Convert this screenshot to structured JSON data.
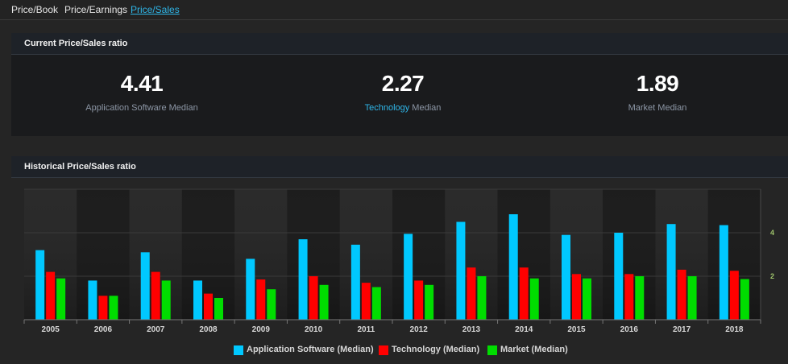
{
  "tabs": [
    {
      "label": "Price/Book",
      "active": false
    },
    {
      "label": "Price/Earnings",
      "active": false
    },
    {
      "label": "Price/Sales",
      "active": true
    }
  ],
  "current": {
    "title": "Current Price/Sales ratio",
    "stats": [
      {
        "value": "4.41",
        "label_highlight": "",
        "label_rest": "Application Software Median"
      },
      {
        "value": "2.27",
        "label_highlight": "Technology",
        "label_rest": " Median"
      },
      {
        "value": "1.89",
        "label_highlight": "",
        "label_rest": "Market Median"
      }
    ]
  },
  "historical": {
    "title": "Historical Price/Sales ratio"
  },
  "colors": {
    "application_software": "#00c8ff",
    "technology": "#ff0000",
    "market": "#00dd00",
    "accent": "#2fb6e8",
    "tick_green": "#9ec36b"
  },
  "chart_data": {
    "type": "bar",
    "categories": [
      "2005",
      "2006",
      "2007",
      "2008",
      "2009",
      "2010",
      "2011",
      "2012",
      "2013",
      "2014",
      "2015",
      "2016",
      "2017",
      "2018"
    ],
    "series": [
      {
        "name": "Application Software (Median)",
        "values": [
          3.2,
          1.8,
          3.1,
          1.8,
          2.8,
          3.7,
          3.45,
          3.95,
          4.5,
          4.85,
          3.9,
          4.0,
          4.4,
          4.35
        ]
      },
      {
        "name": "Technology (Median)",
        "values": [
          2.2,
          1.1,
          2.2,
          1.2,
          1.85,
          2.0,
          1.7,
          1.8,
          2.4,
          2.4,
          2.1,
          2.1,
          2.3,
          2.25
        ]
      },
      {
        "name": "Market (Median)",
        "values": [
          1.9,
          1.1,
          1.8,
          1.0,
          1.4,
          1.6,
          1.5,
          1.6,
          2.0,
          1.9,
          1.9,
          2.0,
          2.0,
          1.87
        ]
      }
    ],
    "y_ticks": [
      "2",
      "4"
    ],
    "ylim": [
      0,
      6
    ],
    "xlabel": "",
    "ylabel": "",
    "legend": "bottom",
    "grid": true
  }
}
